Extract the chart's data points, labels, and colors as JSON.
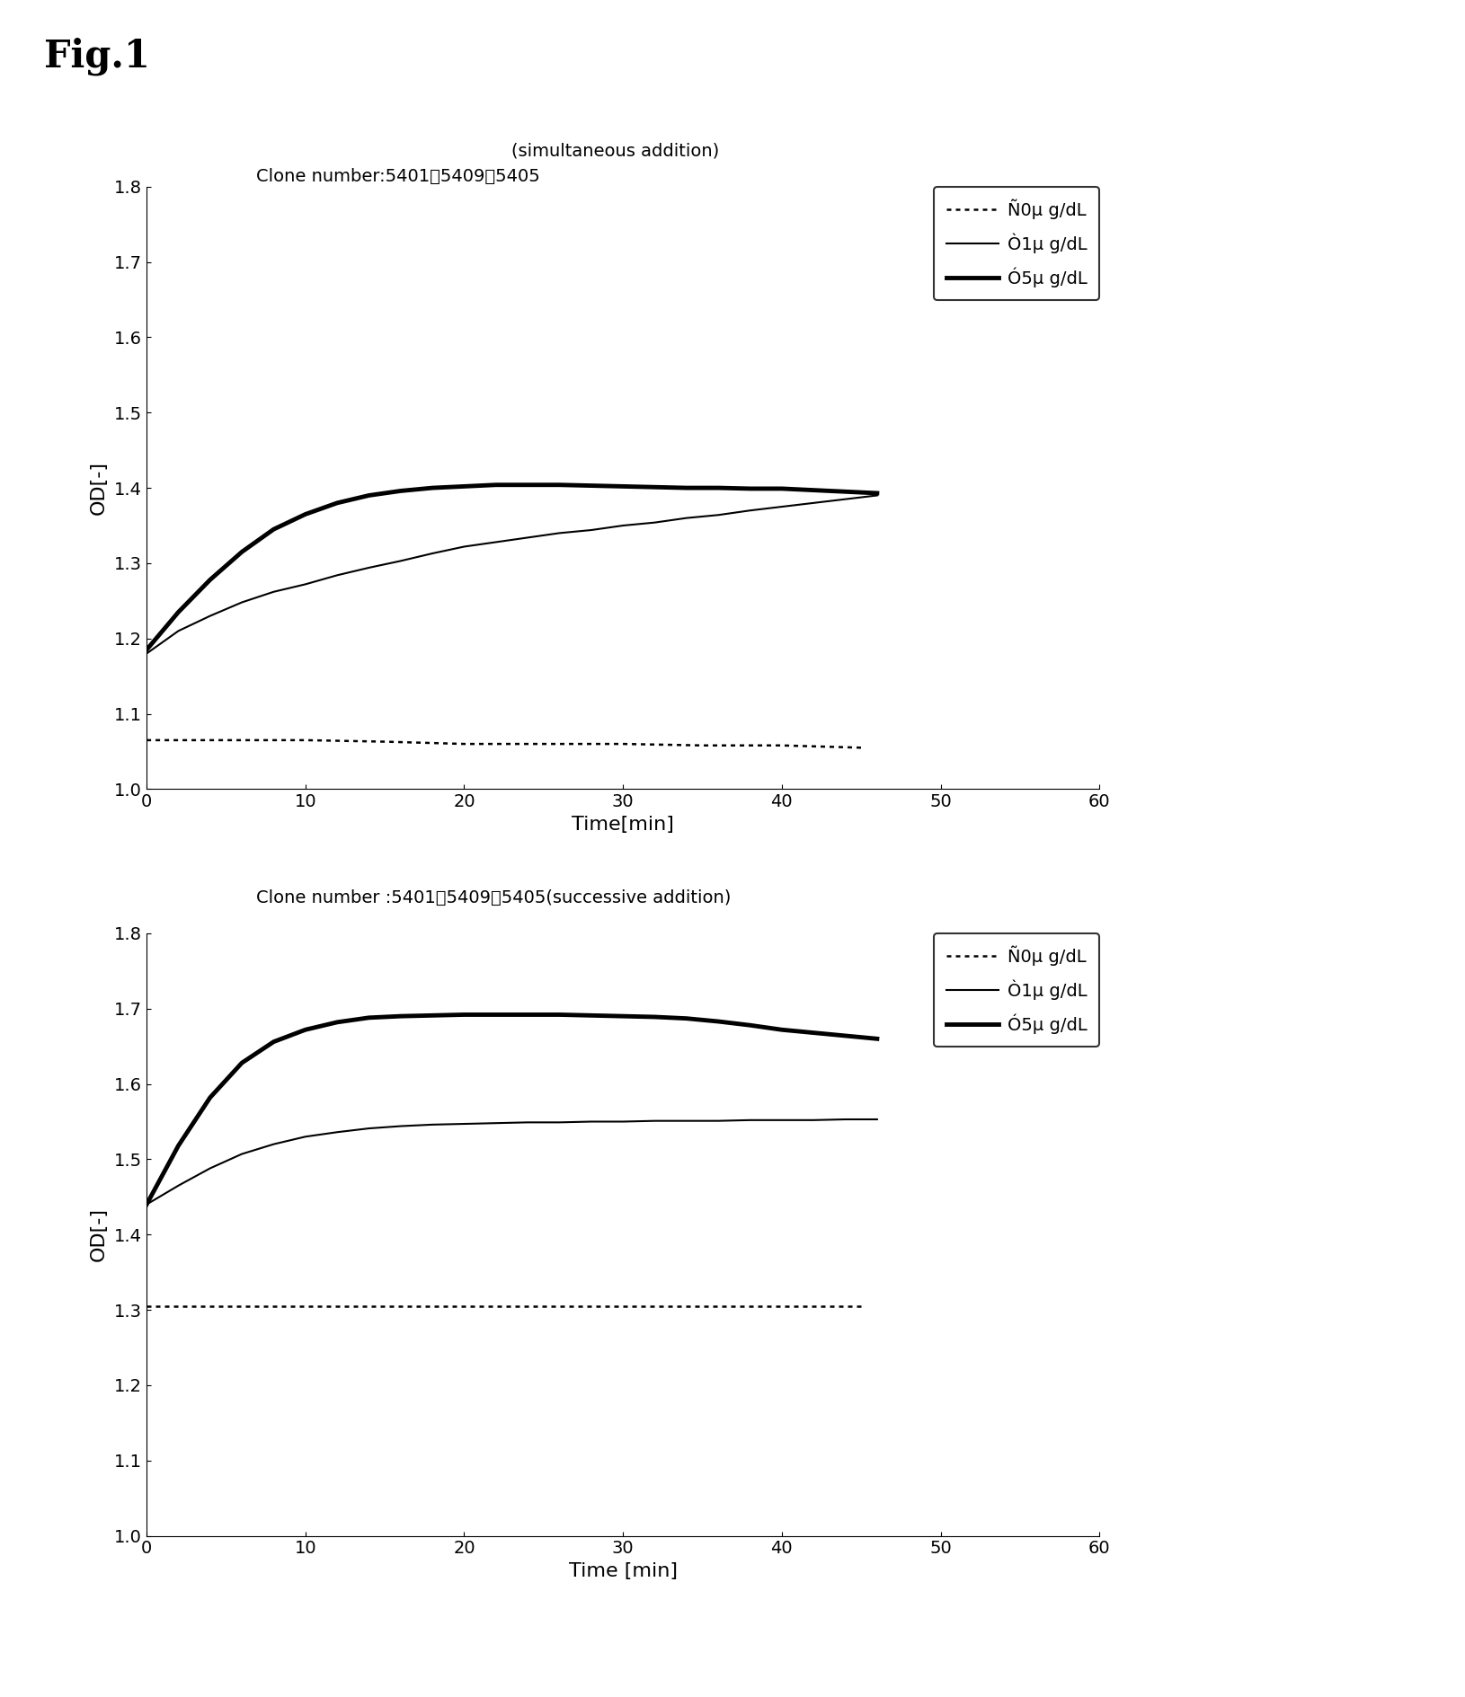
{
  "fig_title": "Fig.1",
  "top_chart": {
    "title_line1": "(simultaneous addition)",
    "title_line2": "Clone number:5401、5409、5405",
    "xlabel": "Time[min]",
    "ylabel": "OD[-]",
    "xlim": [
      0,
      60
    ],
    "ylim": [
      1.0,
      1.8
    ],
    "yticks": [
      1.0,
      1.1,
      1.2,
      1.3,
      1.4,
      1.5,
      1.6,
      1.7,
      1.8
    ],
    "xticks": [
      0,
      10,
      20,
      30,
      40,
      50,
      60
    ],
    "series": [
      {
        "label": "Ñ0μ g/dL",
        "linestyle": "dotted",
        "linewidth": 1.8,
        "color": "#000000",
        "x": [
          0,
          5,
          10,
          15,
          20,
          25,
          30,
          35,
          40,
          45
        ],
        "y": [
          1.065,
          1.065,
          1.065,
          1.063,
          1.06,
          1.06,
          1.06,
          1.058,
          1.058,
          1.055
        ]
      },
      {
        "label": "Ò1μ g/dL",
        "linestyle": "solid",
        "linewidth": 1.5,
        "color": "#000000",
        "x": [
          0,
          2,
          4,
          6,
          8,
          10,
          12,
          14,
          16,
          18,
          20,
          22,
          24,
          26,
          28,
          30,
          32,
          34,
          36,
          38,
          40,
          42,
          44,
          46
        ],
        "y": [
          1.18,
          1.21,
          1.23,
          1.248,
          1.262,
          1.272,
          1.284,
          1.294,
          1.303,
          1.313,
          1.322,
          1.328,
          1.334,
          1.34,
          1.344,
          1.35,
          1.354,
          1.36,
          1.364,
          1.37,
          1.375,
          1.38,
          1.385,
          1.39
        ]
      },
      {
        "label": "Ó5μ g/dL",
        "linestyle": "solid",
        "linewidth": 3.5,
        "color": "#000000",
        "x": [
          0,
          2,
          4,
          6,
          8,
          10,
          12,
          14,
          16,
          18,
          20,
          22,
          24,
          26,
          28,
          30,
          32,
          34,
          36,
          38,
          40,
          42,
          44,
          46
        ],
        "y": [
          1.185,
          1.235,
          1.278,
          1.315,
          1.345,
          1.365,
          1.38,
          1.39,
          1.396,
          1.4,
          1.402,
          1.404,
          1.404,
          1.404,
          1.403,
          1.402,
          1.401,
          1.4,
          1.4,
          1.399,
          1.399,
          1.397,
          1.395,
          1.393
        ]
      }
    ]
  },
  "bottom_chart": {
    "title_line1": "Clone number :5401、5409、5405(successive addition)",
    "xlabel": "Time [min]",
    "ylabel": "OD[-]",
    "xlim": [
      0,
      60
    ],
    "ylim": [
      1.0,
      1.8
    ],
    "yticks": [
      1.0,
      1.1,
      1.2,
      1.3,
      1.4,
      1.5,
      1.6,
      1.7,
      1.8
    ],
    "xticks": [
      0,
      10,
      20,
      30,
      40,
      50,
      60
    ],
    "series": [
      {
        "label": "Ñ0μ g/dL",
        "linestyle": "dotted",
        "linewidth": 1.8,
        "color": "#000000",
        "x": [
          0,
          5,
          10,
          15,
          20,
          25,
          30,
          35,
          40,
          45
        ],
        "y": [
          1.305,
          1.305,
          1.305,
          1.305,
          1.305,
          1.305,
          1.305,
          1.305,
          1.305,
          1.305
        ]
      },
      {
        "label": "Ò1μ g/dL",
        "linestyle": "solid",
        "linewidth": 1.5,
        "color": "#000000",
        "x": [
          0,
          2,
          4,
          6,
          8,
          10,
          12,
          14,
          16,
          18,
          20,
          22,
          24,
          26,
          28,
          30,
          32,
          34,
          36,
          38,
          40,
          42,
          44,
          46
        ],
        "y": [
          1.44,
          1.465,
          1.488,
          1.507,
          1.52,
          1.53,
          1.536,
          1.541,
          1.544,
          1.546,
          1.547,
          1.548,
          1.549,
          1.549,
          1.55,
          1.55,
          1.551,
          1.551,
          1.551,
          1.552,
          1.552,
          1.552,
          1.553,
          1.553
        ]
      },
      {
        "label": "Ó5μ g/dL",
        "linestyle": "solid",
        "linewidth": 3.5,
        "color": "#000000",
        "x": [
          0,
          2,
          4,
          6,
          8,
          10,
          12,
          14,
          16,
          18,
          20,
          22,
          24,
          26,
          28,
          30,
          32,
          34,
          36,
          38,
          40,
          42,
          44,
          46
        ],
        "y": [
          1.44,
          1.518,
          1.582,
          1.628,
          1.656,
          1.672,
          1.682,
          1.688,
          1.69,
          1.691,
          1.692,
          1.692,
          1.692,
          1.692,
          1.691,
          1.69,
          1.689,
          1.687,
          1.683,
          1.678,
          1.672,
          1.668,
          1.664,
          1.66
        ]
      }
    ]
  },
  "legend_labels": [
    "Ñ0μ g/dL",
    "Ò1μ g/dL",
    "Ó5μ g/dL"
  ]
}
